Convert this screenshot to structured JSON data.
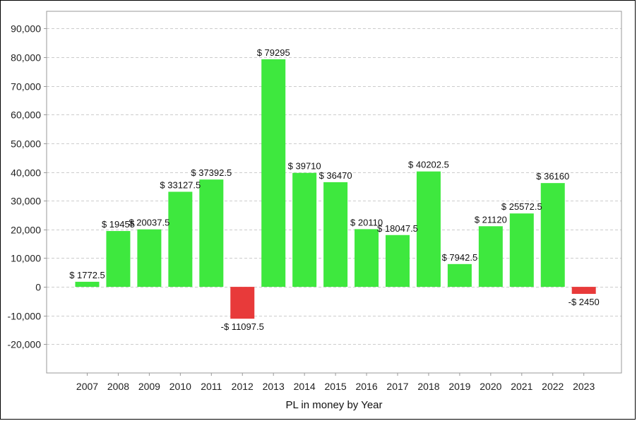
{
  "chart_data": {
    "type": "bar",
    "title": "",
    "xlabel": "PL in money by Year",
    "ylabel": "",
    "ylim": [
      -30000,
      96000
    ],
    "yticks": [
      -20000,
      -10000,
      0,
      10000,
      20000,
      30000,
      40000,
      50000,
      60000,
      70000,
      80000,
      90000
    ],
    "ytick_labels": [
      "-20,000",
      "-10,000",
      "0",
      "10,000",
      "20,000",
      "30,000",
      "40,000",
      "50,000",
      "60,000",
      "70,000",
      "80,000",
      "90,000"
    ],
    "grid": true,
    "categories": [
      "2007",
      "2008",
      "2009",
      "2010",
      "2011",
      "2012",
      "2013",
      "2014",
      "2015",
      "2016",
      "2017",
      "2018",
      "2019",
      "2020",
      "2021",
      "2022",
      "2023"
    ],
    "values": [
      1772.5,
      19455,
      20037.5,
      33127.5,
      37392.5,
      -11097.5,
      79295,
      39710,
      36470,
      20110,
      18047.5,
      40202.5,
      7942.5,
      21120,
      25572.5,
      36160,
      -2450
    ],
    "data_labels": [
      "$ 1772.5",
      "$ 19455",
      "$ 20037.5",
      "$ 33127.5",
      "$ 37392.5",
      "-$ 11097.5",
      "$ 79295",
      "$ 39710",
      "$ 36470",
      "$ 20110",
      "$ 18047.5",
      "$ 40202.5",
      "$ 7942.5",
      "$ 21120",
      "$ 25572.5",
      "$ 36160",
      "-$ 2450"
    ],
    "colors": {
      "positive": "#3ee83e",
      "negative": "#e83a3a",
      "grid": "#cccccc",
      "axis": "#999999"
    }
  }
}
